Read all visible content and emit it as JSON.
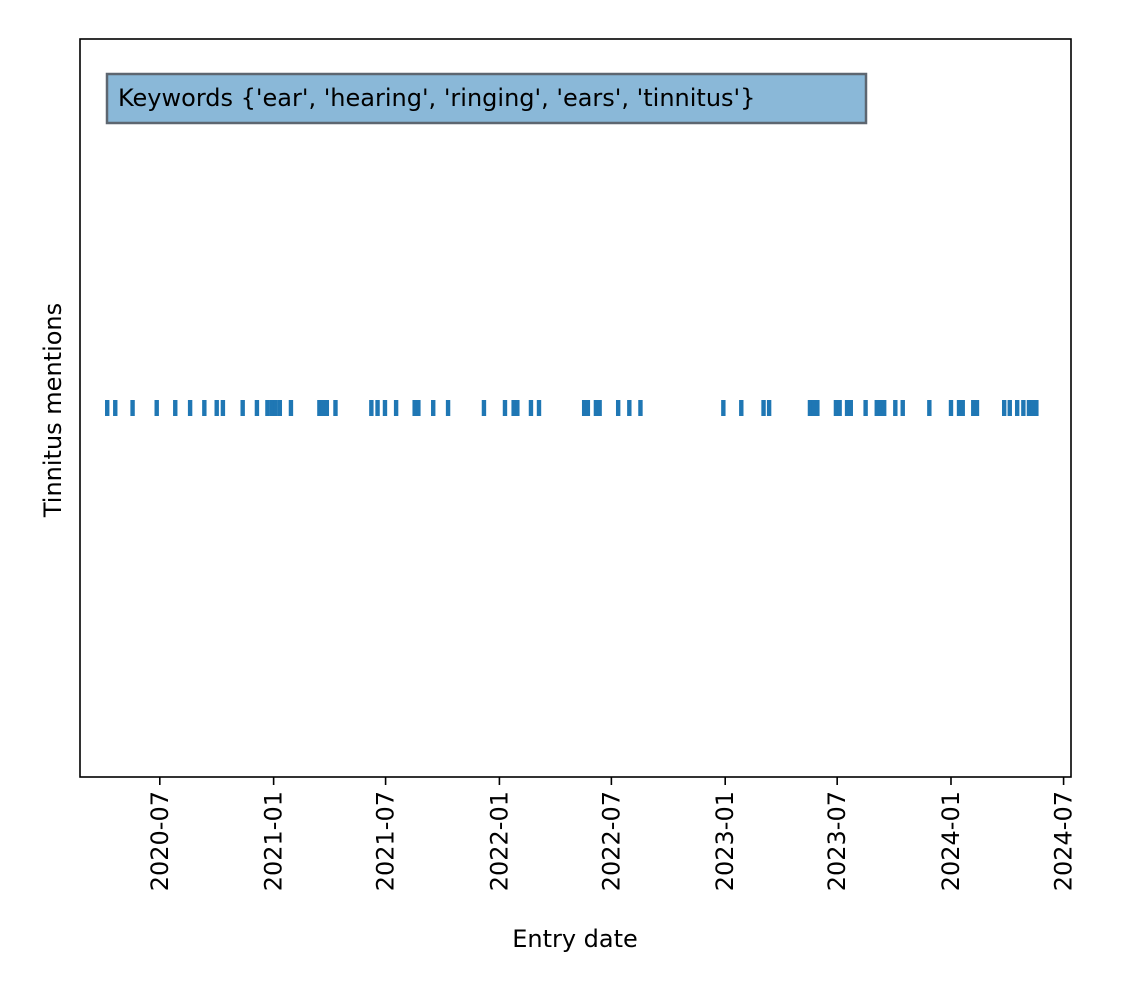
{
  "chart_data": {
    "type": "event-raster",
    "xlabel": "Entry date",
    "ylabel": "Tinnitus mentions",
    "x_ticks": [
      "2020-07",
      "2021-01",
      "2021-07",
      "2022-01",
      "2022-07",
      "2023-01",
      "2023-07",
      "2024-01",
      "2024-07"
    ],
    "xlim": [
      "2020-02-23",
      "2024-07-13"
    ],
    "ylim": [
      0,
      1
    ],
    "grid": false,
    "annotation": "Keywords {'ear', 'hearing', 'ringing', 'ears', 'tinnitus'}",
    "annotation_position": "top-left",
    "colors": {
      "events": "#1f77b4",
      "annotation_fill": "#8ab8d8",
      "annotation_edge": "#5d6670"
    },
    "event_dates": [
      "2020-04-07",
      "2020-04-20",
      "2020-05-18",
      "2020-06-26",
      "2020-07-26",
      "2020-08-19",
      "2020-09-11",
      "2020-10-01",
      "2020-10-11",
      "2020-11-12",
      "2020-12-05",
      "2020-12-22",
      "2020-12-29",
      "2021-01-04",
      "2021-01-11",
      "2021-01-29",
      "2021-03-16",
      "2021-03-22",
      "2021-03-28",
      "2021-04-11",
      "2021-06-08",
      "2021-06-18",
      "2021-06-30",
      "2021-07-18",
      "2021-08-17",
      "2021-08-23",
      "2021-09-16",
      "2021-10-10",
      "2021-12-07",
      "2022-01-10",
      "2022-01-24",
      "2022-01-30",
      "2022-02-21",
      "2022-03-06",
      "2022-05-18",
      "2022-05-24",
      "2022-06-06",
      "2022-06-12",
      "2022-07-12",
      "2022-07-30",
      "2022-08-17",
      "2022-12-29",
      "2023-01-27",
      "2023-03-04",
      "2023-03-13",
      "2023-05-18",
      "2023-05-24",
      "2023-05-30",
      "2023-06-29",
      "2023-07-05",
      "2023-07-17",
      "2023-07-23",
      "2023-08-16",
      "2023-09-03",
      "2023-09-09",
      "2023-09-15",
      "2023-10-03",
      "2023-10-15",
      "2023-11-27",
      "2024-01-01",
      "2024-01-14",
      "2024-01-20",
      "2024-02-06",
      "2024-02-12",
      "2024-03-27",
      "2024-04-05",
      "2024-04-17",
      "2024-04-27",
      "2024-05-06",
      "2024-05-12",
      "2024-05-18"
    ]
  }
}
